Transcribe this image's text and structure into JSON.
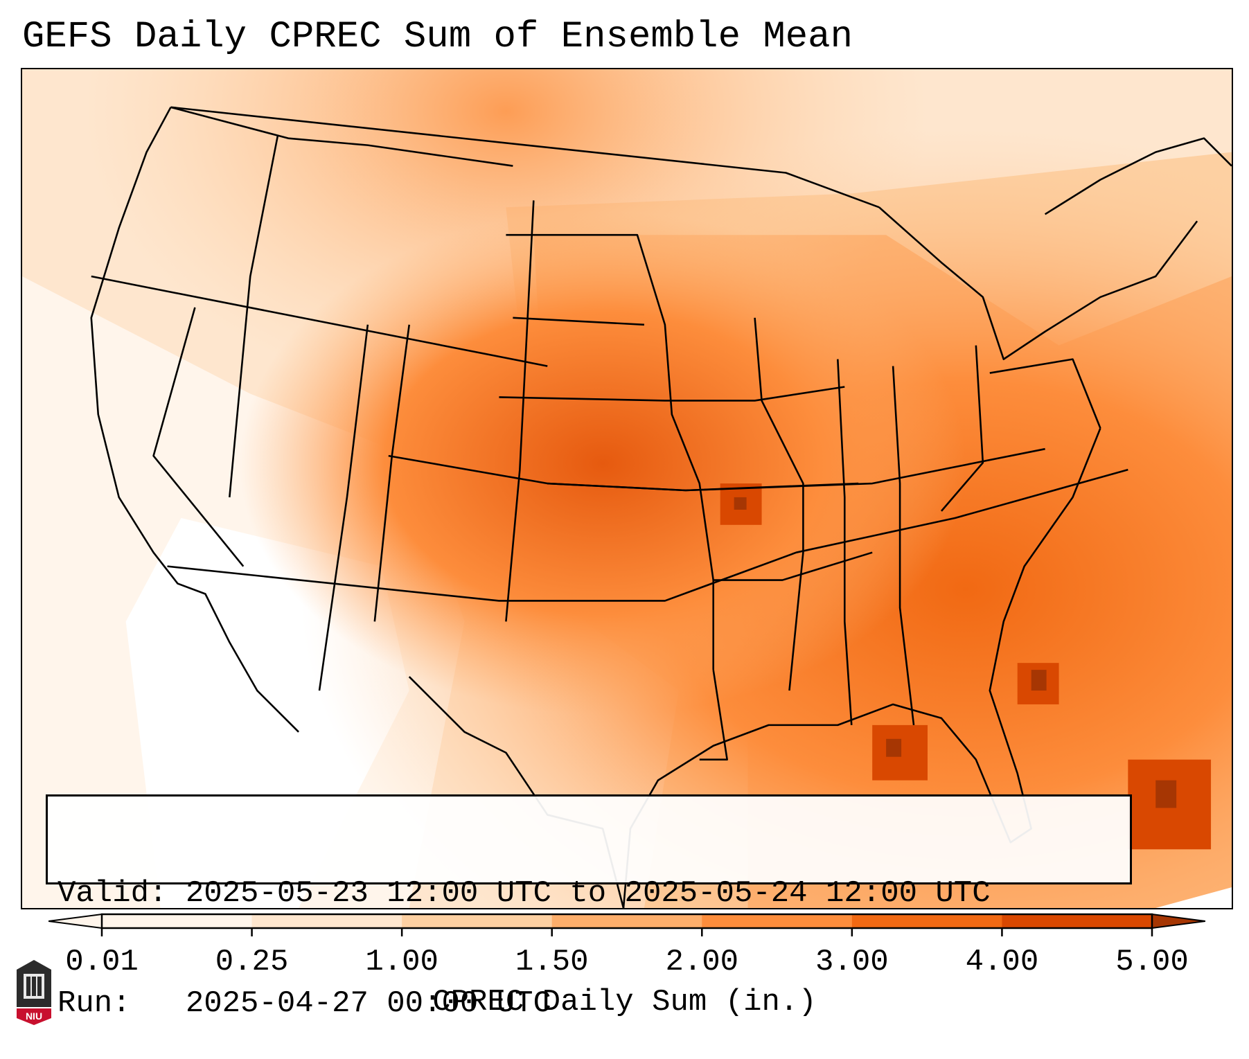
{
  "title": "GEFS Daily CPREC Sum of Ensemble Mean",
  "info_box": {
    "valid_line": "Valid: 2025-05-23 12:00 UTC to 2025-05-24 12:00 UTC",
    "run_line": "Run:   2025-04-27 00:00 UTC"
  },
  "colorbar": {
    "label": "CPREC Daily Sum (in.)",
    "ticks": [
      "0.01",
      "0.25",
      "1.00",
      "1.50",
      "2.00",
      "3.00",
      "4.00",
      "5.00"
    ],
    "colors": [
      "#fff5eb",
      "#fee6ce",
      "#fdd0a2",
      "#fdae6b",
      "#fd8d3c",
      "#f16913",
      "#d94801",
      "#a63603"
    ],
    "extend": "both"
  },
  "logo": {
    "text": "NIU",
    "name": "niu-logo"
  },
  "map": {
    "projection": "lambert-conformal",
    "region": "Contiguous United States",
    "features": [
      "state-borders",
      "coastlines",
      "country-borders"
    ]
  }
}
